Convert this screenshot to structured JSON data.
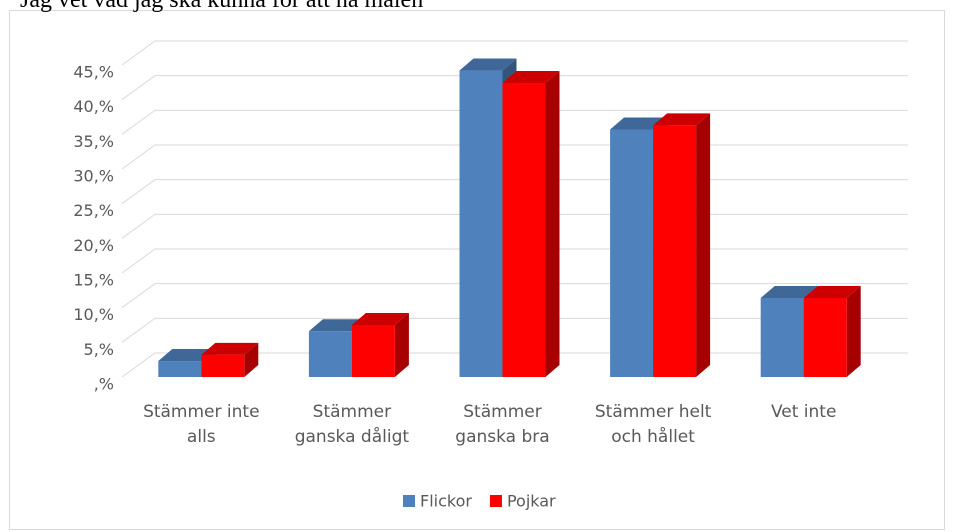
{
  "chart_data": {
    "type": "bar3d",
    "title": "Jag vet vad jag ska kunna för att nå målen\"",
    "categories": [
      "Stämmer inte alls",
      "Stämmer ganska dåligt",
      "Stämmer ganska bra",
      "Stämmer helt och hållet",
      "Vet inte"
    ],
    "series": [
      {
        "name": "Flickor",
        "color": "#4f81bd",
        "values": [
          2.3,
          6.6,
          44.2,
          35.7,
          11.4
        ]
      },
      {
        "name": "Pojkar",
        "color": "#ff0000",
        "values": [
          3.2,
          7.5,
          42.4,
          36.3,
          11.4
        ]
      }
    ],
    "ylim": [
      0,
      45
    ],
    "yticks": [
      {
        "value": 0,
        "label": ",%"
      },
      {
        "value": 5,
        "label": "5,%"
      },
      {
        "value": 10,
        "label": "10,%"
      },
      {
        "value": 15,
        "label": "15,%"
      },
      {
        "value": 20,
        "label": "20,%"
      },
      {
        "value": 25,
        "label": "25,%"
      },
      {
        "value": 30,
        "label": "30,%"
      },
      {
        "value": 35,
        "label": "35,%"
      },
      {
        "value": 40,
        "label": "40,%"
      },
      {
        "value": 45,
        "label": "45,%"
      }
    ],
    "grid": true,
    "legend": "bottom"
  }
}
